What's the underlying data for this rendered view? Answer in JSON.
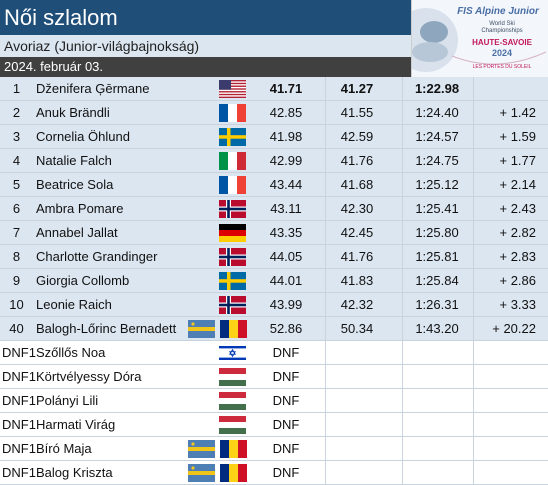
{
  "header": {
    "title": "Női szlalom",
    "subtitle": "Avoriaz (Junior-világbajnokság)",
    "date": "2024. február 03."
  },
  "logo": {
    "line1": "FIS Alpine Junior",
    "line2": "World Ski",
    "line3": "Championships",
    "line4": "HAUTE-SAVOIE",
    "line5": "2024",
    "line6": "LES PORTES DU SOLEIL"
  },
  "results": [
    {
      "rank": "1",
      "name": "Dženifera Ģērmane",
      "flag": "usa-flag",
      "run1": "41.71",
      "run2": "41.27",
      "total": "1:22.98",
      "diff": ""
    },
    {
      "rank": "2",
      "name": "Anuk Brändli",
      "flag": "france-flag",
      "run1": "42.85",
      "run2": "41.55",
      "total": "1:24.40",
      "diff": "+ 1.42"
    },
    {
      "rank": "3",
      "name": "Cornelia Öhlund",
      "flag": "sweden-flag",
      "run1": "41.98",
      "run2": "42.59",
      "total": "1:24.57",
      "diff": "+ 1.59"
    },
    {
      "rank": "4",
      "name": "Natalie Falch",
      "flag": "italy-flag",
      "run1": "42.99",
      "run2": "41.76",
      "total": "1:24.75",
      "diff": "+ 1.77"
    },
    {
      "rank": "5",
      "name": "Beatrice Sola",
      "flag": "france-flag",
      "run1": "43.44",
      "run2": "41.68",
      "total": "1:25.12",
      "diff": "+ 2.14"
    },
    {
      "rank": "6",
      "name": "Ambra Pomare",
      "flag": "norway-flag",
      "run1": "43.11",
      "run2": "42.30",
      "total": "1:25.41",
      "diff": "+ 2.43"
    },
    {
      "rank": "7",
      "name": "Annabel Jallat",
      "flag": "germany-flag",
      "run1": "43.35",
      "run2": "42.45",
      "total": "1:25.80",
      "diff": "+ 2.82"
    },
    {
      "rank": "8",
      "name": "Charlotte Grandinger",
      "flag": "norway-flag",
      "run1": "44.05",
      "run2": "41.76",
      "total": "1:25.81",
      "diff": "+ 2.83"
    },
    {
      "rank": "9",
      "name": "Giorgia Collomb",
      "flag": "sweden-flag",
      "run1": "44.01",
      "run2": "41.83",
      "total": "1:25.84",
      "diff": "+ 2.86"
    },
    {
      "rank": "10",
      "name": "Leonie Raich",
      "flag": "norway-flag",
      "run1": "43.99",
      "run2": "42.32",
      "total": "1:26.31",
      "diff": "+ 3.33"
    },
    {
      "rank": "40",
      "name": "Balogh-Lőrinc Bernadett",
      "flag": "szekely-romania-flags",
      "run1": "52.86",
      "run2": "50.34",
      "total": "1:43.20",
      "diff": "+ 20.22"
    },
    {
      "rank": "DNF1",
      "name": "Szőllős Noa",
      "flag": "israel-flag",
      "run1": "DNF",
      "run2": "",
      "total": "",
      "diff": ""
    },
    {
      "rank": "DNF1",
      "name": "Körtvélyessy Dóra",
      "flag": "hungary-flag",
      "run1": "DNF",
      "run2": "",
      "total": "",
      "diff": ""
    },
    {
      "rank": "DNF1",
      "name": "Polányi Lili",
      "flag": "hungary-flag",
      "run1": "DNF",
      "run2": "",
      "total": "",
      "diff": ""
    },
    {
      "rank": "DNF1",
      "name": "Harmati Virág",
      "flag": "hungary-flag",
      "run1": "DNF",
      "run2": "",
      "total": "",
      "diff": ""
    },
    {
      "rank": "DNF1",
      "name": "Bíró Maja",
      "flag": "szekely-romania-flags",
      "run1": "DNF",
      "run2": "",
      "total": "",
      "diff": ""
    },
    {
      "rank": "DNF1",
      "name": "Balog Kriszta",
      "flag": "szekely-romania-flags",
      "run1": "DNF",
      "run2": "",
      "total": "",
      "diff": ""
    }
  ],
  "colors": {
    "header_bg": "#1f4e79",
    "stripe_bg": "#dce6f1",
    "date_bg": "#404040"
  }
}
